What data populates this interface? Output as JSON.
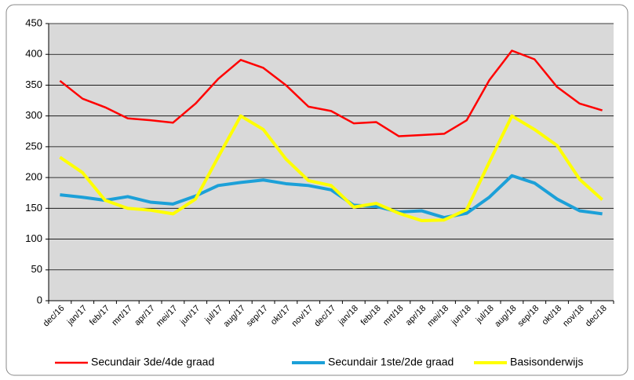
{
  "chart_data": {
    "type": "line",
    "categories": [
      "dec/16",
      "jan/17",
      "feb/17",
      "mrt/17",
      "apr/17",
      "mei/17",
      "jun/17",
      "jul/17",
      "aug/17",
      "sep/17",
      "okt/17",
      "nov/17",
      "dec/17",
      "jan/18",
      "feb/18",
      "mrt/18",
      "apr/18",
      "mei/18",
      "jun/18",
      "jul/18",
      "aug/18",
      "sep/18",
      "okt/18",
      "nov/18",
      "dec/18"
    ],
    "series": [
      {
        "name": "Secundair 3de/4de graad",
        "color": "#ff0000",
        "values": [
          357,
          328,
          314,
          296,
          293,
          289,
          320,
          360,
          391,
          378,
          350,
          315,
          308,
          288,
          290,
          267,
          269,
          271,
          293,
          358,
          406,
          392,
          347,
          320,
          309
        ]
      },
      {
        "name": "Secundair 1ste/2de graad",
        "color": "#1ca0d8",
        "values": [
          172,
          168,
          163,
          169,
          160,
          157,
          170,
          187,
          192,
          196,
          190,
          187,
          180,
          155,
          153,
          144,
          146,
          135,
          142,
          168,
          203,
          191,
          165,
          146,
          141
        ]
      },
      {
        "name": "Basisonderwijs",
        "color": "#ffff00",
        "values": [
          233,
          208,
          163,
          150,
          147,
          141,
          165,
          233,
          300,
          278,
          230,
          195,
          187,
          152,
          158,
          142,
          130,
          131,
          148,
          225,
          300,
          278,
          252,
          197,
          164
        ]
      }
    ],
    "ylim": [
      0,
      450
    ],
    "yticks": [
      0,
      50,
      100,
      150,
      200,
      250,
      300,
      350,
      400,
      450
    ],
    "grid": true,
    "legend": "bottom"
  }
}
